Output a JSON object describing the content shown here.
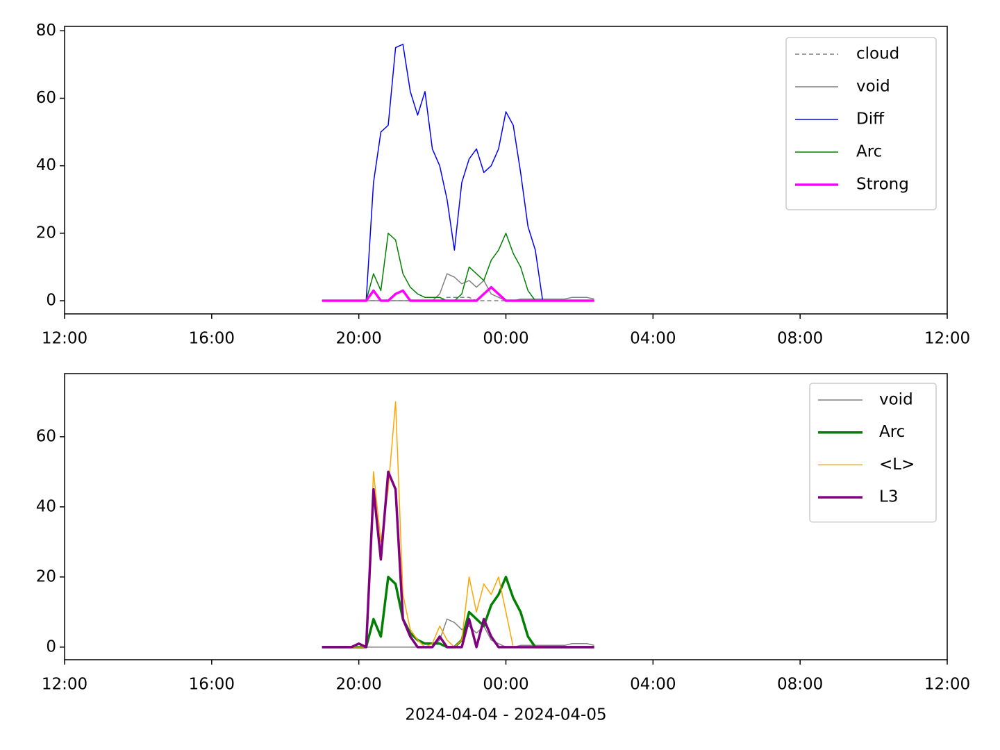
{
  "chart_data": [
    {
      "type": "line",
      "x": [
        19.0,
        19.2,
        19.4,
        19.6,
        19.8,
        20.0,
        20.2,
        20.4,
        20.6,
        20.8,
        21.0,
        21.2,
        21.4,
        21.6,
        21.8,
        22.0,
        22.2,
        22.4,
        22.6,
        22.8,
        23.0,
        23.2,
        23.4,
        23.6,
        23.8,
        24.0,
        24.2,
        24.4,
        24.6,
        24.8,
        25.0,
        25.2,
        25.4,
        25.6,
        25.8,
        26.0,
        26.2,
        26.4
      ],
      "xlim": [
        12,
        36
      ],
      "xticks": [
        {
          "value": 12,
          "label": "12:00"
        },
        {
          "value": 16,
          "label": "16:00"
        },
        {
          "value": 20,
          "label": "20:00"
        },
        {
          "value": 24,
          "label": "00:00"
        },
        {
          "value": 28,
          "label": "04:00"
        },
        {
          "value": 32,
          "label": "08:00"
        },
        {
          "value": 36,
          "label": "12:00"
        }
      ],
      "ylim": [
        -3.9,
        81.3
      ],
      "yticks": [
        0,
        20,
        40,
        60,
        80
      ],
      "legend": "upper right",
      "series": [
        {
          "name": "cloud",
          "color": "#808080",
          "linestyle": "dashed",
          "linewidth": 1.5,
          "values": [
            0,
            0,
            0,
            0,
            0,
            0,
            0,
            0,
            0,
            0,
            0,
            0,
            0,
            0,
            0,
            0,
            0,
            1,
            1,
            1,
            1,
            0,
            0,
            0,
            0,
            0,
            0,
            0,
            0,
            0,
            0,
            0,
            0,
            0,
            0,
            0,
            0,
            0
          ]
        },
        {
          "name": "void",
          "color": "#808080",
          "linestyle": "solid",
          "linewidth": 1.5,
          "values": [
            0,
            0,
            0,
            0,
            0,
            0,
            0,
            0,
            0,
            0,
            0,
            0,
            0,
            0,
            0,
            0,
            2,
            8,
            7,
            5,
            6,
            4,
            6,
            2,
            1,
            0,
            0,
            0.5,
            0.5,
            0.5,
            0.5,
            0.5,
            0.5,
            0.5,
            1,
            1,
            1,
            0.5
          ]
        },
        {
          "name": "Diff",
          "color": "#0000ff",
          "linestyle": "solid",
          "linewidth": 1.5,
          "values": [
            0,
            0,
            0,
            0,
            0,
            0,
            0,
            35,
            50,
            52,
            75,
            76,
            62,
            55,
            62,
            45,
            40,
            30,
            15,
            35,
            42,
            45,
            38,
            40,
            45,
            56,
            52,
            38,
            22,
            15,
            0,
            0,
            0,
            0,
            0,
            0,
            0,
            0
          ]
        },
        {
          "name": "Arc",
          "color": "#008000",
          "linestyle": "solid",
          "linewidth": 1.5,
          "values": [
            0,
            0,
            0,
            0,
            0,
            0,
            0,
            8,
            3,
            20,
            18,
            8,
            4,
            2,
            1,
            1,
            1,
            0,
            0,
            2,
            10,
            8,
            6,
            12,
            15,
            20,
            14,
            10,
            3,
            0,
            0,
            0,
            0,
            0,
            0,
            0,
            0,
            0
          ]
        },
        {
          "name": "Strong",
          "color": "#ff00ff",
          "linestyle": "solid",
          "linewidth": 3.5,
          "values": [
            0,
            0,
            0,
            0,
            0,
            0,
            0,
            3,
            0,
            0,
            2,
            3,
            0,
            0,
            0,
            0,
            0,
            0,
            0,
            0,
            0,
            0,
            2,
            4,
            2,
            0,
            0,
            0,
            0,
            0,
            0,
            0,
            0,
            0,
            0,
            0,
            0,
            0
          ]
        }
      ]
    },
    {
      "type": "line",
      "x": [
        19.0,
        19.2,
        19.4,
        19.6,
        19.8,
        20.0,
        20.2,
        20.4,
        20.6,
        20.8,
        21.0,
        21.2,
        21.4,
        21.6,
        21.8,
        22.0,
        22.2,
        22.4,
        22.6,
        22.8,
        23.0,
        23.2,
        23.4,
        23.6,
        23.8,
        24.0,
        24.2,
        24.4,
        24.6,
        24.8,
        25.0,
        25.2,
        25.4,
        25.6,
        25.8,
        26.0,
        26.2,
        26.4
      ],
      "xlim": [
        12,
        36
      ],
      "xticks": [
        {
          "value": 12,
          "label": "12:00"
        },
        {
          "value": 16,
          "label": "16:00"
        },
        {
          "value": 20,
          "label": "20:00"
        },
        {
          "value": 24,
          "label": "00:00"
        },
        {
          "value": 28,
          "label": "04:00"
        },
        {
          "value": 32,
          "label": "08:00"
        },
        {
          "value": 36,
          "label": "12:00"
        }
      ],
      "xlabel": "2024-04-04 - 2024-04-05",
      "ylim": [
        -3.6,
        78
      ],
      "yticks": [
        0,
        20,
        40,
        60
      ],
      "legend": "upper right",
      "series": [
        {
          "name": "void",
          "color": "#808080",
          "linestyle": "solid",
          "linewidth": 1.5,
          "values": [
            0,
            0,
            0,
            0,
            0,
            0,
            0,
            0,
            0,
            0,
            0,
            0,
            0,
            0,
            0,
            0,
            2,
            8,
            7,
            5,
            6,
            4,
            6,
            2,
            1,
            0,
            0,
            0.5,
            0.5,
            0.5,
            0.5,
            0.5,
            0.5,
            0.5,
            1,
            1,
            1,
            0.5
          ]
        },
        {
          "name": "Arc",
          "color": "#008000",
          "linestyle": "solid",
          "linewidth": 3.5,
          "values": [
            0,
            0,
            0,
            0,
            0,
            0,
            0,
            8,
            3,
            20,
            18,
            8,
            4,
            2,
            1,
            1,
            1,
            0,
            0,
            2,
            10,
            8,
            6,
            12,
            15,
            20,
            14,
            10,
            3,
            0,
            0,
            0,
            0,
            0,
            0,
            0,
            0,
            0
          ]
        },
        {
          "name": "<L>",
          "color": "#ffa500",
          "linestyle": "solid",
          "linewidth": 1.5,
          "values": [
            0,
            0,
            0,
            0,
            0,
            0,
            0,
            50,
            30,
            45,
            70,
            15,
            5,
            2,
            0,
            1,
            6,
            2,
            0,
            2,
            20,
            10,
            18,
            15,
            20,
            10,
            0,
            0,
            0,
            0,
            0,
            0,
            0,
            0,
            0,
            0,
            0,
            0
          ]
        },
        {
          "name": "L3",
          "color": "#800080",
          "linestyle": "solid",
          "linewidth": 3.5,
          "values": [
            0,
            0,
            0,
            0,
            0,
            1,
            0,
            45,
            25,
            50,
            45,
            8,
            3,
            0,
            0,
            0,
            3,
            0,
            0,
            0,
            8,
            0,
            8,
            3,
            0,
            0,
            0,
            0,
            0,
            0,
            0,
            0,
            0,
            0,
            0,
            0,
            0,
            0
          ]
        }
      ]
    }
  ]
}
